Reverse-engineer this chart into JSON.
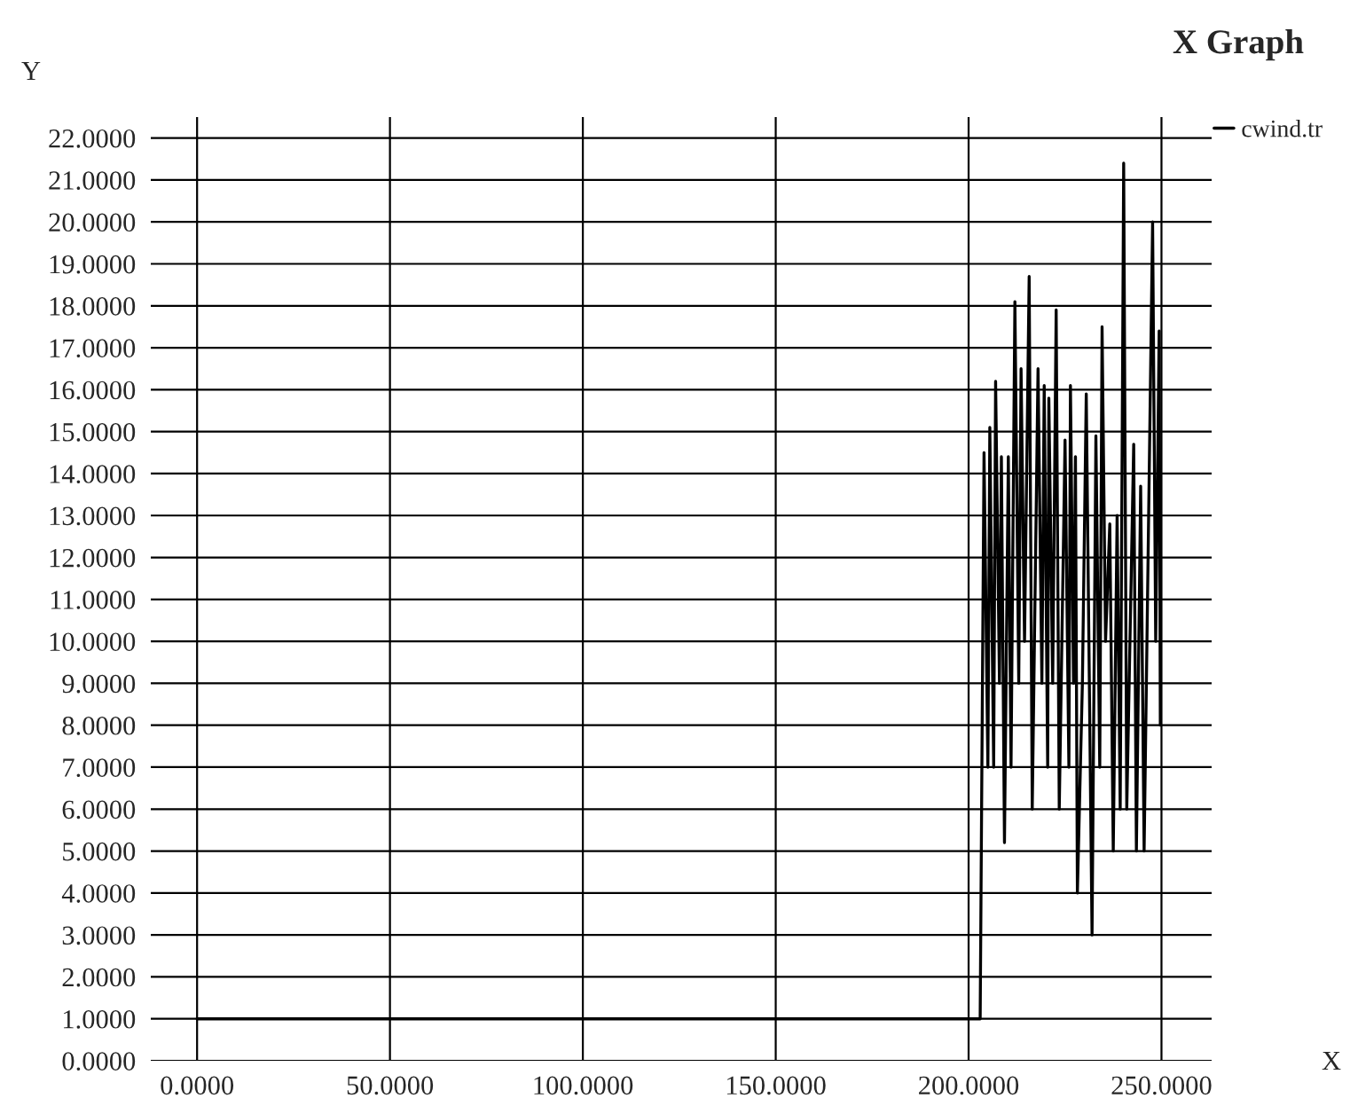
{
  "chart_data": {
    "type": "line",
    "title": "X Graph",
    "xlabel": "X",
    "ylabel": "Y",
    "xlim": [
      -12,
      263
    ],
    "ylim": [
      0,
      22.5
    ],
    "xticks": [
      {
        "value": 0,
        "label": "0.0000"
      },
      {
        "value": 50,
        "label": "50.0000"
      },
      {
        "value": 100,
        "label": "100.0000"
      },
      {
        "value": 150,
        "label": "150.0000"
      },
      {
        "value": 200,
        "label": "200.0000"
      },
      {
        "value": 250,
        "label": "250.0000"
      }
    ],
    "yticks": [
      {
        "value": 0,
        "label": "0.0000"
      },
      {
        "value": 1,
        "label": "1.0000"
      },
      {
        "value": 2,
        "label": "2.0000"
      },
      {
        "value": 3,
        "label": "3.0000"
      },
      {
        "value": 4,
        "label": "4.0000"
      },
      {
        "value": 5,
        "label": "5.0000"
      },
      {
        "value": 6,
        "label": "6.0000"
      },
      {
        "value": 7,
        "label": "7.0000"
      },
      {
        "value": 8,
        "label": "8.0000"
      },
      {
        "value": 9,
        "label": "9.0000"
      },
      {
        "value": 10,
        "label": "10.0000"
      },
      {
        "value": 11,
        "label": "11.0000"
      },
      {
        "value": 12,
        "label": "12.0000"
      },
      {
        "value": 13,
        "label": "13.0000"
      },
      {
        "value": 14,
        "label": "14.0000"
      },
      {
        "value": 15,
        "label": "15.0000"
      },
      {
        "value": 16,
        "label": "16.0000"
      },
      {
        "value": 17,
        "label": "17.0000"
      },
      {
        "value": 18,
        "label": "18.0000"
      },
      {
        "value": 19,
        "label": "19.0000"
      },
      {
        "value": 20,
        "label": "20.0000"
      },
      {
        "value": 21,
        "label": "21.0000"
      },
      {
        "value": 22,
        "label": "22.0000"
      }
    ],
    "grid": true,
    "legend": "top right",
    "series": [
      {
        "name": "cwind.tr",
        "color": "#000000",
        "x": [
          0,
          203,
          204,
          205,
          205.5,
          206.5,
          207,
          208,
          208.5,
          209.3,
          210.3,
          211,
          212,
          213,
          213.6,
          214.5,
          215.7,
          216.5,
          218,
          219,
          219.6,
          220.5,
          220.8,
          221.8,
          222.7,
          223.5,
          225,
          226,
          226.4,
          227.2,
          227.7,
          228.2,
          229.5,
          230.5,
          232,
          233,
          234,
          234.6,
          235.5,
          236.6,
          237.5,
          238.5,
          239.3,
          240.2,
          241,
          242.8,
          243.5,
          244.6,
          245.5,
          247.7,
          248.5,
          249.4,
          249.7
        ],
        "values": [
          1,
          1,
          14.5,
          7,
          15.1,
          7,
          16.2,
          9,
          14.4,
          5.2,
          14.4,
          7,
          18.1,
          9,
          16.5,
          10,
          18.7,
          6,
          16.5,
          9,
          16.1,
          7,
          15.8,
          9,
          17.9,
          6,
          14.8,
          7,
          16.1,
          9,
          14.4,
          4,
          9,
          15.9,
          3,
          14.9,
          7,
          17.5,
          10,
          12.8,
          5,
          13,
          6,
          21.4,
          6,
          14.7,
          5,
          13.7,
          5,
          20,
          10,
          17.4,
          8
        ]
      }
    ]
  }
}
